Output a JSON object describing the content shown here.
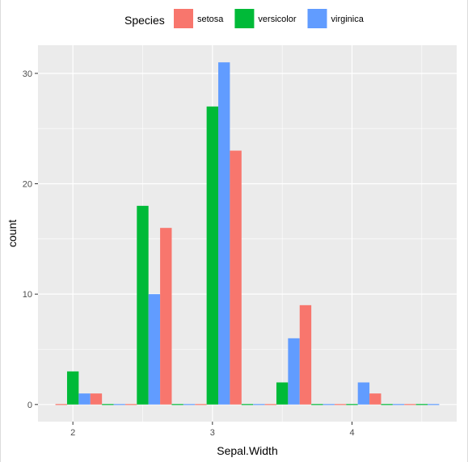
{
  "chart_data": {
    "type": "bar",
    "title": "",
    "xlabel": "Sepal.Width",
    "ylabel": "count",
    "legend": {
      "title": "Species",
      "position": "top"
    },
    "bin_width": 0.25,
    "x_bins": [
      2.0,
      2.25,
      2.5,
      2.75,
      3.0,
      3.25,
      3.5,
      3.75,
      4.0,
      4.25,
      4.5
    ],
    "series": [
      {
        "name": "setosa",
        "color": "#F8766D",
        "values": [
          0,
          1,
          0,
          16,
          0,
          23,
          0,
          9,
          0,
          1,
          0
        ]
      },
      {
        "name": "versicolor",
        "color": "#00BA38",
        "values": [
          3,
          0,
          18,
          0,
          27,
          0,
          2,
          0,
          0,
          0,
          0
        ]
      },
      {
        "name": "virginica",
        "color": "#619CFF",
        "values": [
          1,
          0,
          10,
          0,
          31,
          0,
          6,
          0,
          2,
          0,
          0
        ]
      }
    ],
    "x_ticks": [
      2,
      3,
      4
    ],
    "y_ticks": [
      0,
      10,
      20,
      30
    ],
    "xlim": [
      1.75,
      4.75
    ],
    "ylim": [
      -1.55,
      32.55
    ],
    "grid": true,
    "panel_background": "#EBEBEB"
  }
}
